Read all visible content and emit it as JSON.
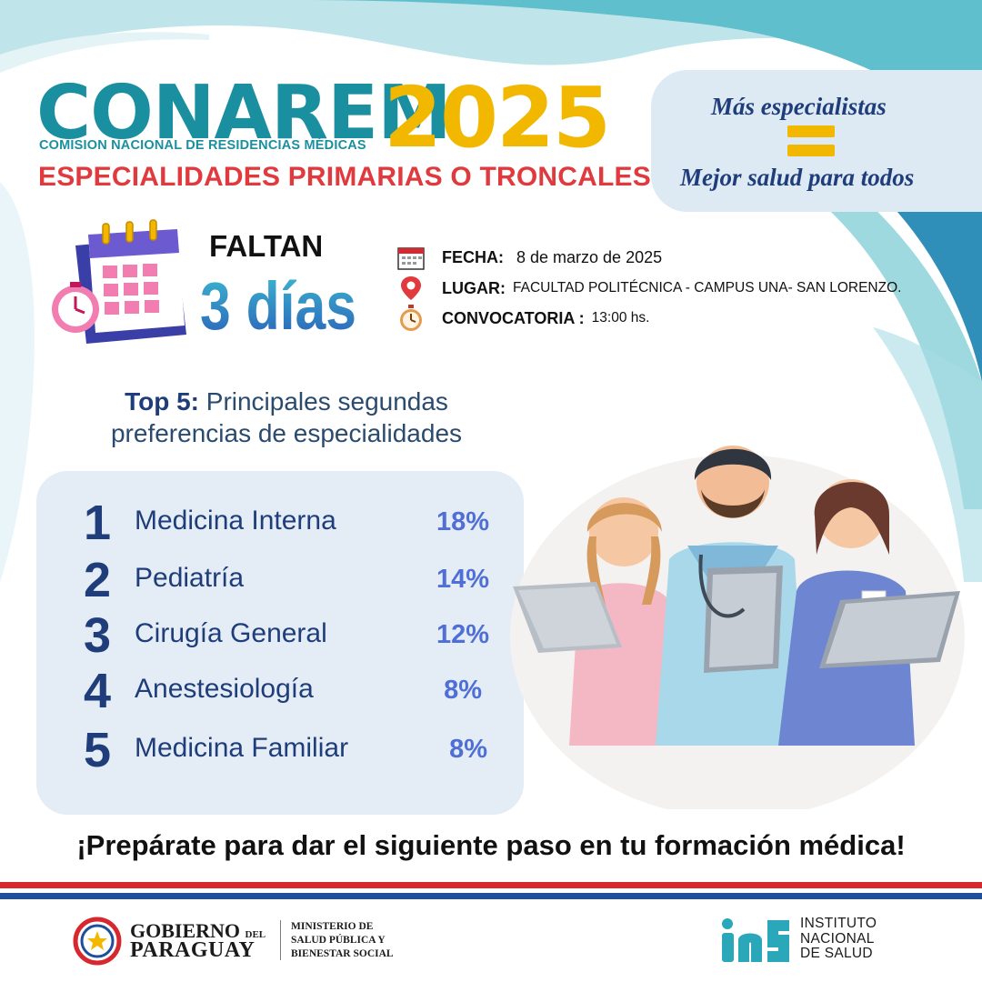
{
  "header": {
    "title": "CONAREM",
    "year": "2025",
    "subtitle": "COMISION NACIONAL DE RESIDENCIAS MÉDICAS",
    "category": "ESPECIALIDADES PRIMARIAS O TRONCALES"
  },
  "motto": {
    "line1": "Más especialistas",
    "line2": "Mejor salud para todos"
  },
  "countdown": {
    "label": "FALTAN",
    "value": "3 días"
  },
  "event": {
    "date_label": "FECHA:",
    "date_value": "8 de marzo de 2025",
    "place_label": "LUGAR:",
    "place_value": "FACULTAD POLITÉCNICA - CAMPUS UNA- SAN LORENZO.",
    "call_label": "CONVOCATORIA :",
    "call_value": "13:00 hs."
  },
  "ranking": {
    "heading_bold": "Top 5:",
    "heading_line1": "Principales segundas",
    "heading_line2": "preferencias de especialidades",
    "items": [
      {
        "rank": "1",
        "name": "Medicina Interna",
        "pct": "18%"
      },
      {
        "rank": "2",
        "name": "Pediatría",
        "pct": "14%"
      },
      {
        "rank": "3",
        "name": "Cirugía General",
        "pct": "12%"
      },
      {
        "rank": "4",
        "name": "Anestesiología",
        "pct": "8%"
      },
      {
        "rank": "5",
        "name": "Medicina Familiar",
        "pct": "8%"
      }
    ]
  },
  "cta": "¡Prepárate para dar el siguiente paso en tu formación médica!",
  "footer": {
    "gob_line1": "GOBIERNO",
    "gob_del": "DEL",
    "gob_line2": "PARAGUAY",
    "ministerio_1": "MINISTERIO DE",
    "ministerio_2": "SALUD PÚBLICA Y",
    "ministerio_3": "BIENESTAR SOCIAL",
    "ins_1": "INSTITUTO",
    "ins_2": "NACIONAL",
    "ins_3": "DE SALUD"
  },
  "icons": {
    "calendar": "calendar-icon",
    "clock": "clock-icon",
    "pin": "location-pin-icon",
    "stopwatch": "stopwatch-icon"
  },
  "colors": {
    "teal": "#1a8fa0",
    "yellow": "#f2b800",
    "red": "#e03a3e",
    "navy": "#1f3d7a",
    "pct_blue": "#4f6fd6"
  }
}
